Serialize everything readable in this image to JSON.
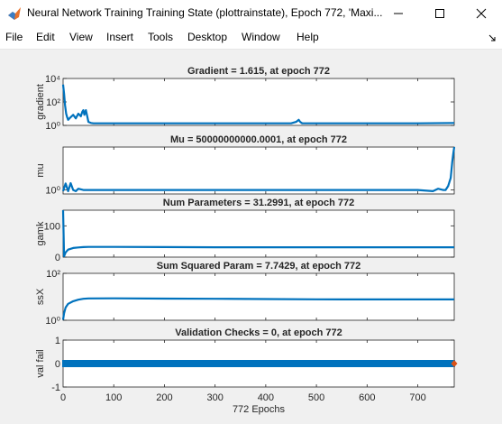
{
  "window": {
    "title": "Neural Network Training Training State (plottrainstate), Epoch 772, 'Maxi..."
  },
  "menu": [
    "File",
    "Edit",
    "View",
    "Insert",
    "Tools",
    "Desktop",
    "Window",
    "Help"
  ],
  "colors": {
    "line": "#0072bd",
    "marker": "#d95319",
    "axes": "#262626",
    "figure_bg": "#f0f0f0"
  },
  "chart_data": [
    {
      "type": "line",
      "title": "Gradient = 1.615, at epoch 772",
      "ylabel": "gradient",
      "yscale": "log",
      "ylim": [
        1,
        10000
      ],
      "yticks": [
        {
          "v": 1,
          "label": "10⁰"
        },
        {
          "v": 100,
          "label": "10²"
        },
        {
          "v": 10000,
          "label": "10⁴"
        }
      ],
      "xlim": [
        0,
        772
      ],
      "x": [
        0,
        2,
        4,
        6,
        8,
        10,
        15,
        20,
        25,
        30,
        35,
        38,
        40,
        42,
        45,
        48,
        50,
        55,
        60,
        70,
        100,
        200,
        300,
        400,
        450,
        460,
        465,
        468,
        472,
        480,
        500,
        600,
        700,
        772
      ],
      "y": [
        3000,
        500,
        50,
        10,
        5,
        3,
        5,
        8,
        4,
        10,
        6,
        15,
        20,
        8,
        20,
        5,
        2,
        1.6,
        1.5,
        1.5,
        1.5,
        1.5,
        1.5,
        1.5,
        1.5,
        2,
        3,
        2,
        1.5,
        1.5,
        1.5,
        1.5,
        1.5,
        1.615
      ]
    },
    {
      "type": "line",
      "title": "Mu = 50000000000.0001, at epoch 772",
      "ylabel": "mu",
      "yscale": "log",
      "ylim": [
        0.1,
        50000000000
      ],
      "yticks": [
        {
          "v": 1,
          "label": "10⁰"
        }
      ],
      "xlim": [
        0,
        772
      ],
      "x": [
        0,
        5,
        10,
        15,
        20,
        25,
        30,
        40,
        60,
        100,
        200,
        300,
        400,
        500,
        600,
        700,
        730,
        740,
        750,
        755,
        760,
        765,
        768,
        770,
        772
      ],
      "y": [
        0.5,
        40,
        0.5,
        50,
        1,
        0.5,
        2,
        1,
        1,
        1,
        1,
        1,
        1,
        1,
        1,
        1,
        0.5,
        2,
        1,
        1,
        10,
        1000,
        10000000,
        1000000000,
        50000000000
      ]
    },
    {
      "type": "line",
      "title": "Num Parameters = 31.2991, at epoch 772",
      "ylabel": "gamk",
      "yscale": "linear",
      "ylim": [
        0,
        150
      ],
      "yticks": [
        {
          "v": 0,
          "label": "0"
        },
        {
          "v": 100,
          "label": "100"
        }
      ],
      "xlim": [
        0,
        772
      ],
      "x": [
        0,
        2,
        5,
        10,
        20,
        30,
        40,
        50,
        100,
        200,
        300,
        400,
        500,
        600,
        700,
        772
      ],
      "y": [
        150,
        3,
        15,
        24,
        29,
        31,
        32,
        32.5,
        32.5,
        32,
        31.5,
        31.3,
        31.3,
        31.3,
        31.3,
        31.2991
      ]
    },
    {
      "type": "line",
      "title": "Sum Squared Param = 7.7429, at epoch 772",
      "ylabel": "ssX",
      "yscale": "log",
      "ylim": [
        1,
        100
      ],
      "yticks": [
        {
          "v": 1,
          "label": "10⁰"
        },
        {
          "v": 100,
          "label": "10²"
        }
      ],
      "xlim": [
        0,
        772
      ],
      "x": [
        0,
        2,
        5,
        10,
        20,
        30,
        40,
        50,
        100,
        200,
        300,
        400,
        500,
        600,
        700,
        772
      ],
      "y": [
        1.05,
        2,
        3.5,
        5,
        6.5,
        7.5,
        8.2,
        8.5,
        8.6,
        8.4,
        8.2,
        8.0,
        7.8,
        7.75,
        7.75,
        7.7429
      ]
    },
    {
      "type": "scatter",
      "title": "Validation Checks = 0, at epoch 772",
      "ylabel": "val fail",
      "yscale": "linear",
      "ylim": [
        -1,
        1
      ],
      "yticks": [
        {
          "v": -1,
          "label": "-1"
        },
        {
          "v": 0,
          "label": "0"
        },
        {
          "v": 1,
          "label": "1"
        }
      ],
      "xlim": [
        0,
        772
      ],
      "x_range": [
        0,
        772
      ],
      "y_const": 0,
      "last_point": {
        "x": 772,
        "y": 0
      },
      "xticks": [
        0,
        100,
        200,
        300,
        400,
        500,
        600,
        700
      ],
      "xlabel": "772 Epochs"
    }
  ]
}
